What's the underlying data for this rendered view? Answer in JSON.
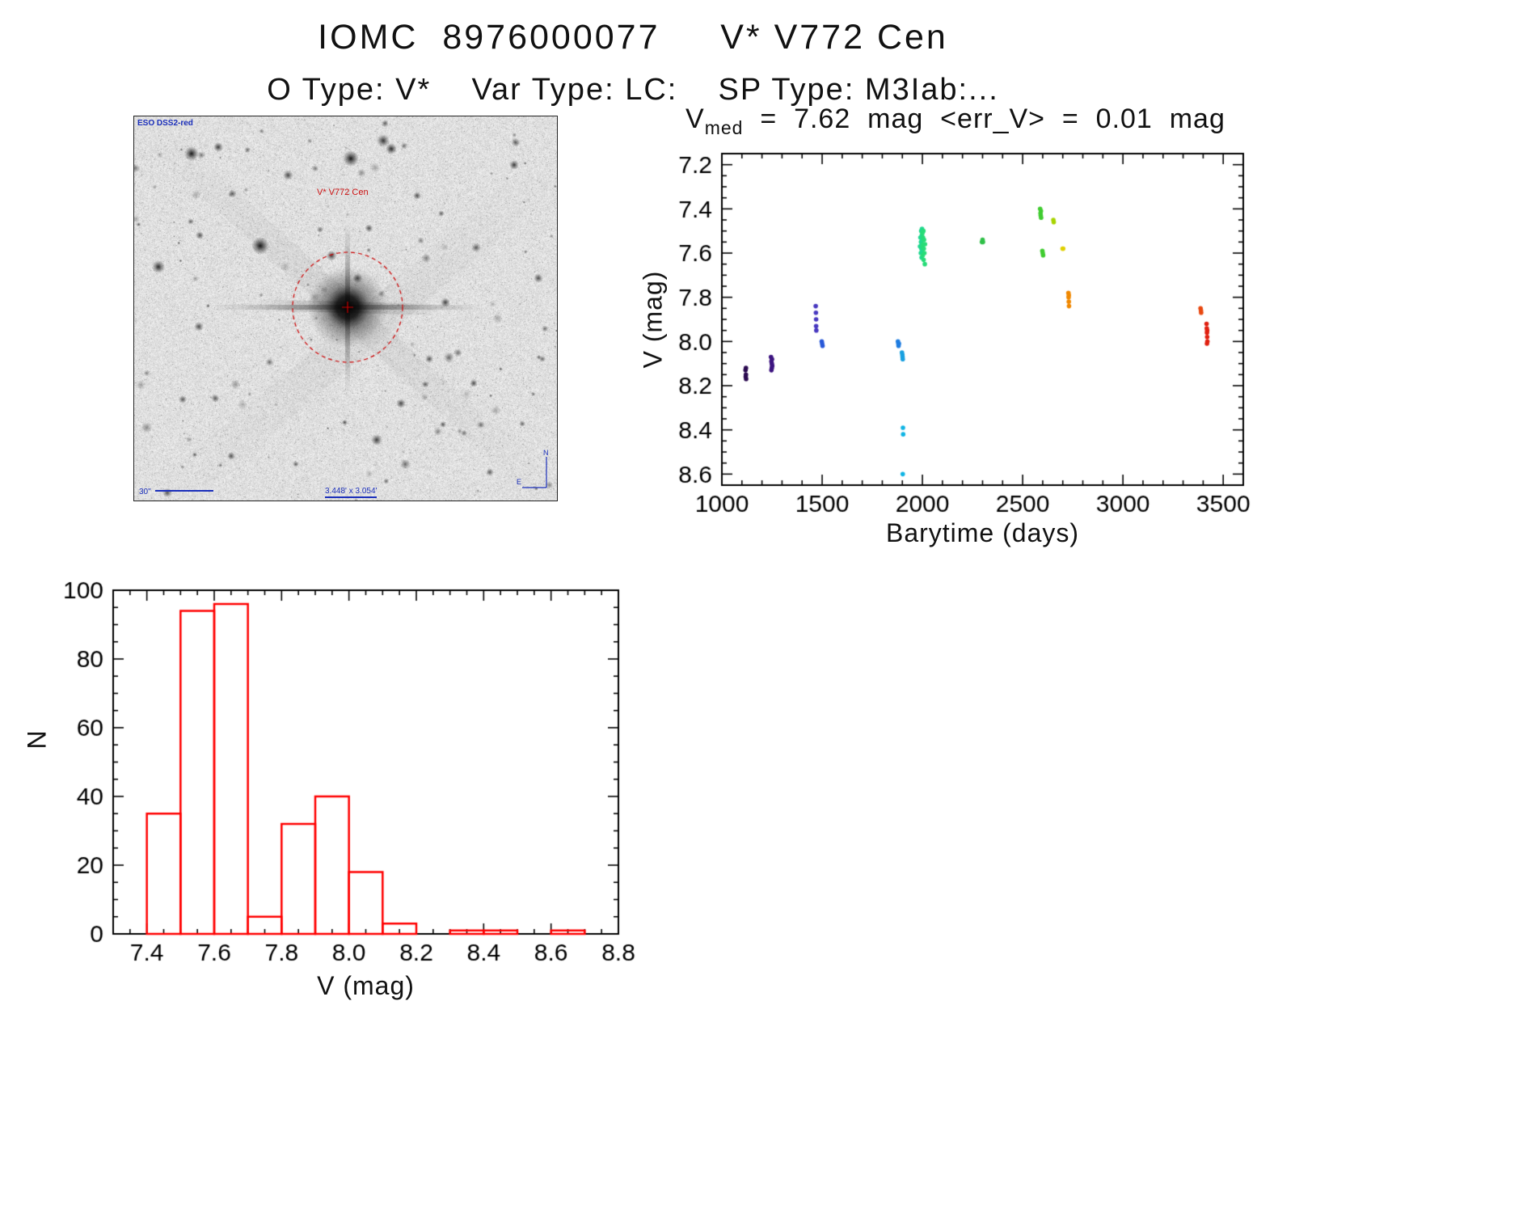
{
  "header": {
    "title": "IOMC  8976000077     V* V772 Cen",
    "subtitle": "O Type: V*    Var Type: LC:    SP Type: M3Iab:..."
  },
  "finder": {
    "survey_label": "ESO DSS2-red",
    "target_label": "V* V772 Cen",
    "scale_label": "30\"",
    "size_label": "3.448' x 3.054'",
    "compass_north": "N",
    "compass_east": "E",
    "annotation_color": "#cc0000",
    "label_color": "#1b2fbb"
  },
  "lightcurve": {
    "title_var": "V",
    "title_sub": "med",
    "title_rest": "  =  7.62  mag  <err_V>  =  0.01  mag",
    "xlabel": "Barytime (days)",
    "ylabel": "V (mag)"
  },
  "histogram": {
    "xlabel": "V (mag)",
    "ylabel": "N"
  },
  "chart_data": [
    {
      "type": "scatter",
      "title": "V_med = 7.62 mag <err_V> = 0.01 mag",
      "xlabel": "Barytime (days)",
      "ylabel": "V (mag)",
      "xlim": [
        1000,
        3600
      ],
      "ylim": [
        7.15,
        8.65
      ],
      "y_inverted": true,
      "grid": false,
      "legend": "none",
      "xticks": [
        "1000",
        "1500",
        "2000",
        "2500",
        "3000",
        "3500"
      ],
      "yticks": [
        "7.2",
        "7.4",
        "7.6",
        "7.8",
        "8.0",
        "8.2",
        "8.4",
        "8.6"
      ],
      "x_minor_step": 100,
      "y_minor_step": 0.05,
      "points": [
        [
          1118,
          8.13,
          "#2b0a50"
        ],
        [
          1120,
          8.15,
          "#2b0a50"
        ],
        [
          1121,
          8.17,
          "#2b0a50"
        ],
        [
          1119,
          8.16,
          "#2b0a50"
        ],
        [
          1120,
          8.12,
          "#2b0a50"
        ],
        [
          1245,
          8.07,
          "#3d1480"
        ],
        [
          1247,
          8.09,
          "#3d1480"
        ],
        [
          1249,
          8.1,
          "#3d1480"
        ],
        [
          1251,
          8.11,
          "#3d1480"
        ],
        [
          1249,
          8.12,
          "#3d1480"
        ],
        [
          1247,
          8.13,
          "#3d1480"
        ],
        [
          1250,
          8.08,
          "#3d1480"
        ],
        [
          1468,
          7.84,
          "#4838c0"
        ],
        [
          1469,
          7.87,
          "#4838c0"
        ],
        [
          1470,
          7.9,
          "#4838c0"
        ],
        [
          1470,
          7.93,
          "#4838c0"
        ],
        [
          1471,
          7.95,
          "#4838c0"
        ],
        [
          1498,
          8.0,
          "#2858d8"
        ],
        [
          1500,
          8.01,
          "#2858d8"
        ],
        [
          1502,
          8.02,
          "#2858d8"
        ],
        [
          1878,
          8.0,
          "#1e7ce0"
        ],
        [
          1880,
          8.01,
          "#1e7ce0"
        ],
        [
          1881,
          8.02,
          "#1e7ce0"
        ],
        [
          1883,
          8.01,
          "#1e7ce0"
        ],
        [
          1898,
          8.05,
          "#18a0e0"
        ],
        [
          1900,
          8.06,
          "#18a0e0"
        ],
        [
          1901,
          8.07,
          "#18a0e0"
        ],
        [
          1902,
          8.08,
          "#18a0e0"
        ],
        [
          1903,
          8.39,
          "#10b4e4"
        ],
        [
          1904,
          8.42,
          "#10b4e4"
        ],
        [
          1902,
          8.6,
          "#10b4e4"
        ],
        [
          1988,
          7.57,
          "#20d890"
        ],
        [
          1990,
          7.53,
          "#20d890"
        ],
        [
          1992,
          7.6,
          "#20d890"
        ],
        [
          1993,
          7.55,
          "#20d890"
        ],
        [
          1994,
          7.5,
          "#20d890"
        ],
        [
          1995,
          7.58,
          "#20d890"
        ],
        [
          1996,
          7.62,
          "#20d890"
        ],
        [
          1997,
          7.52,
          "#20d890"
        ],
        [
          1997,
          7.56,
          "#20d890"
        ],
        [
          1998,
          7.49,
          "#20d890"
        ],
        [
          1998,
          7.59,
          "#20d890"
        ],
        [
          1999,
          7.54,
          "#20d890"
        ],
        [
          2000,
          7.51,
          "#28dc78"
        ],
        [
          2001,
          7.57,
          "#28dc78"
        ],
        [
          2002,
          7.61,
          "#28dc78"
        ],
        [
          2003,
          7.53,
          "#28dc78"
        ],
        [
          2004,
          7.56,
          "#28dc78"
        ],
        [
          2005,
          7.5,
          "#28dc78"
        ],
        [
          2006,
          7.63,
          "#28dc78"
        ],
        [
          2007,
          7.58,
          "#28dc78"
        ],
        [
          2008,
          7.54,
          "#28dc78"
        ],
        [
          2010,
          7.6,
          "#28dc78"
        ],
        [
          2012,
          7.65,
          "#28dc78"
        ],
        [
          2013,
          7.56,
          "#28dc78"
        ],
        [
          2297,
          7.55,
          "#30c048"
        ],
        [
          2300,
          7.54,
          "#30c048"
        ],
        [
          2302,
          7.55,
          "#30c048"
        ],
        [
          2587,
          7.4,
          "#40cc30"
        ],
        [
          2589,
          7.42,
          "#40cc30"
        ],
        [
          2590,
          7.43,
          "#40cc30"
        ],
        [
          2591,
          7.41,
          "#40cc30"
        ],
        [
          2592,
          7.44,
          "#40cc30"
        ],
        [
          2598,
          7.59,
          "#40cc30"
        ],
        [
          2600,
          7.6,
          "#40cc30"
        ],
        [
          2602,
          7.61,
          "#40cc30"
        ],
        [
          2653,
          7.45,
          "#a8d400"
        ],
        [
          2655,
          7.46,
          "#a8d400"
        ],
        [
          2699,
          7.58,
          "#e0d000"
        ],
        [
          2702,
          7.58,
          "#e0d000"
        ],
        [
          2728,
          7.78,
          "#f08800"
        ],
        [
          2729,
          7.8,
          "#f08800"
        ],
        [
          2730,
          7.82,
          "#f08800"
        ],
        [
          2731,
          7.84,
          "#f08800"
        ],
        [
          2730,
          7.79,
          "#f08800"
        ],
        [
          3387,
          7.85,
          "#e84810"
        ],
        [
          3389,
          7.86,
          "#e84810"
        ],
        [
          3390,
          7.87,
          "#e84810"
        ],
        [
          3417,
          7.92,
          "#e02010"
        ],
        [
          3418,
          7.94,
          "#e02010"
        ],
        [
          3419,
          7.96,
          "#e02010"
        ],
        [
          3420,
          7.98,
          "#e02010"
        ],
        [
          3421,
          8.0,
          "#e02010"
        ],
        [
          3419,
          8.01,
          "#e02010"
        ],
        [
          3420,
          7.95,
          "#e02010"
        ]
      ]
    },
    {
      "type": "bar",
      "title": "",
      "xlabel": "V (mag)",
      "ylabel": "N",
      "xlim": [
        7.3,
        8.8
      ],
      "ylim": [
        0,
        100
      ],
      "grid": false,
      "legend": "none",
      "xticks": [
        "7.4",
        "7.6",
        "7.8",
        "8.0",
        "8.2",
        "8.4",
        "8.6",
        "8.8"
      ],
      "yticks": [
        "0",
        "20",
        "40",
        "60",
        "80",
        "100"
      ],
      "x_minor_step": 0.05,
      "y_minor_step": 5,
      "bin_start": 7.4,
      "bin_width": 0.1,
      "categories": [
        "7.4-7.5",
        "7.5-7.6",
        "7.6-7.7",
        "7.7-7.8",
        "7.8-7.9",
        "7.9-8.0",
        "8.0-8.1",
        "8.1-8.2",
        "8.2-8.3",
        "8.3-8.4",
        "8.4-8.5",
        "8.5-8.6",
        "8.6-8.7",
        "8.7-8.8"
      ],
      "values": [
        35,
        94,
        96,
        5,
        32,
        40,
        18,
        3,
        0,
        1,
        1,
        0,
        1,
        0
      ],
      "color": "#ff0000"
    }
  ]
}
